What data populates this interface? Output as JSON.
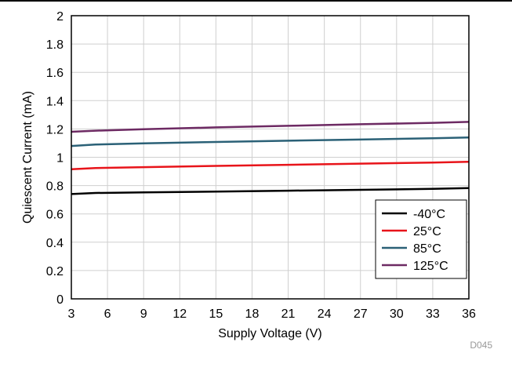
{
  "chart_data": {
    "type": "line",
    "xlabel": "Supply Voltage (V)",
    "ylabel": "Quiescent Current (mA)",
    "xlim": [
      3,
      36
    ],
    "ylim": [
      0,
      2
    ],
    "x_ticks": [
      3,
      6,
      9,
      12,
      15,
      18,
      21,
      24,
      27,
      30,
      33,
      36
    ],
    "y_ticks": [
      0,
      0.2,
      0.4,
      0.6,
      0.8,
      1,
      1.2,
      1.4,
      1.6,
      1.8,
      2
    ],
    "grid": true,
    "legend_position": "bottom-right",
    "series": [
      {
        "name": "-40",
        "unit": "°C",
        "color": "#000000",
        "x": [
          3,
          5,
          9,
          15,
          21,
          27,
          33,
          36
        ],
        "y": [
          0.74,
          0.748,
          0.752,
          0.758,
          0.764,
          0.77,
          0.777,
          0.782
        ]
      },
      {
        "name": "25",
        "unit": "°C",
        "color": "#e8141a",
        "x": [
          3,
          5,
          9,
          15,
          21,
          27,
          33,
          36
        ],
        "y": [
          0.915,
          0.924,
          0.93,
          0.939,
          0.947,
          0.955,
          0.963,
          0.968
        ]
      },
      {
        "name": "85",
        "unit": "°C",
        "color": "#2b6177",
        "x": [
          3,
          5,
          9,
          15,
          21,
          27,
          33,
          36
        ],
        "y": [
          1.08,
          1.09,
          1.098,
          1.108,
          1.117,
          1.125,
          1.134,
          1.14
        ]
      },
      {
        "name": "125",
        "unit": "°C",
        "color": "#6d2a63",
        "x": [
          3,
          5,
          9,
          15,
          21,
          27,
          33,
          36
        ],
        "y": [
          1.18,
          1.188,
          1.198,
          1.211,
          1.222,
          1.233,
          1.243,
          1.25
        ]
      }
    ]
  },
  "figure_id": "D045"
}
